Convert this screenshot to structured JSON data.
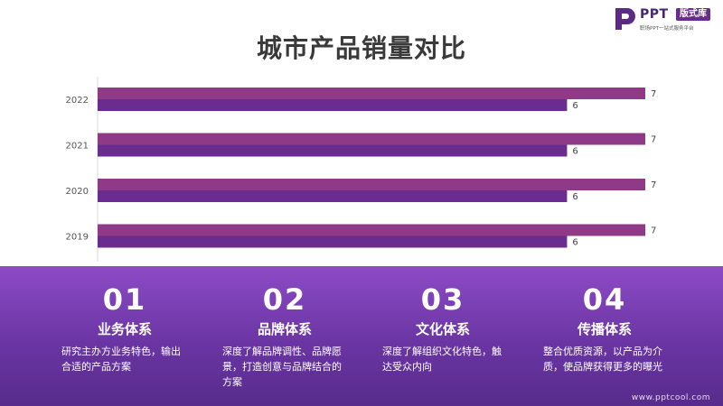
{
  "logo": {
    "ppt": "PPT",
    "badge": "版式库",
    "tagline": "职场PPT一站式服务平台"
  },
  "chart_data": {
    "type": "bar",
    "orientation": "horizontal",
    "title": "城市产品销量对比",
    "categories": [
      "2022",
      "2021",
      "2020",
      "2019"
    ],
    "series": [
      {
        "values": [
          7,
          7,
          7,
          7
        ],
        "color": "#8e3a87"
      },
      {
        "values": [
          6,
          6,
          6,
          6
        ],
        "color": "#6a2c8e"
      }
    ],
    "xlim": [
      0,
      7
    ],
    "grid": false,
    "legend": "none",
    "data_labels": true
  },
  "features": [
    {
      "num": "01",
      "name": "业务体系",
      "desc": "研究主办方业务特色，输出合适的产品方案"
    },
    {
      "num": "02",
      "name": "品牌体系",
      "desc": "深度了解品牌调性、品牌愿景，打造创意与品牌结合的方案"
    },
    {
      "num": "03",
      "name": "文化体系",
      "desc": "深度了解组织文化特色，触达受众内向"
    },
    {
      "num": "04",
      "name": "传播体系",
      "desc": "整合优质资源，以产品为介质，使品牌获得更多的曝光"
    }
  ],
  "footer": {
    "site": "www.pptcool.com"
  }
}
